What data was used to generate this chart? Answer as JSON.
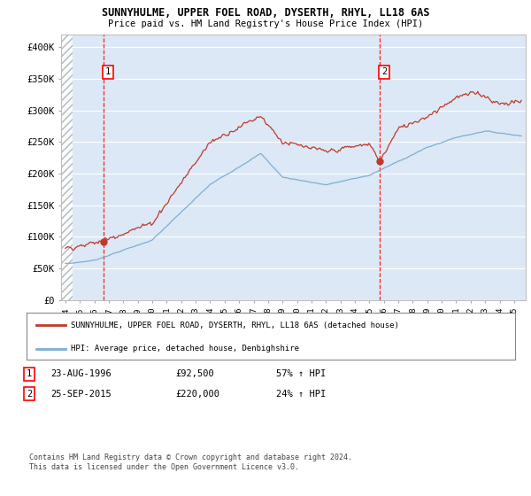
{
  "title": "SUNNYHULME, UPPER FOEL ROAD, DYSERTH, RHYL, LL18 6AS",
  "subtitle": "Price paid vs. HM Land Registry's House Price Index (HPI)",
  "ylim": [
    0,
    420000
  ],
  "yticks": [
    0,
    50000,
    100000,
    150000,
    200000,
    250000,
    300000,
    350000,
    400000
  ],
  "ytick_labels": [
    "£0",
    "£50K",
    "£100K",
    "£150K",
    "£200K",
    "£250K",
    "£300K",
    "£350K",
    "£400K"
  ],
  "hpi_color": "#7bafd4",
  "price_color": "#c0392b",
  "sale1_date": 1996.65,
  "sale1_price": 92500,
  "sale1_label": "1",
  "sale1_hpi_pct": "57% ↑ HPI",
  "sale1_date_str": "23-AUG-1996",
  "sale1_price_str": "£92,500",
  "sale2_date": 2015.73,
  "sale2_price": 220000,
  "sale2_label": "2",
  "sale2_hpi_pct": "24% ↑ HPI",
  "sale2_date_str": "25-SEP-2015",
  "sale2_price_str": "£220,000",
  "legend_line1": "SUNNYHULME, UPPER FOEL ROAD, DYSERTH, RHYL, LL18 6AS (detached house)",
  "legend_line2": "HPI: Average price, detached house, Denbighshire",
  "footnote": "Contains HM Land Registry data © Crown copyright and database right 2024.\nThis data is licensed under the Open Government Licence v3.0.",
  "background_color": "#ffffff",
  "plot_bg": "#dce8f5",
  "grid_color": "#ffffff",
  "xmin": 1993.7,
  "xmax": 2025.8,
  "xtick_years": [
    1994,
    1995,
    1996,
    1997,
    1998,
    1999,
    2000,
    2001,
    2002,
    2003,
    2004,
    2005,
    2006,
    2007,
    2008,
    2009,
    2010,
    2011,
    2012,
    2013,
    2014,
    2015,
    2016,
    2017,
    2018,
    2019,
    2020,
    2021,
    2022,
    2023,
    2024,
    2025
  ]
}
